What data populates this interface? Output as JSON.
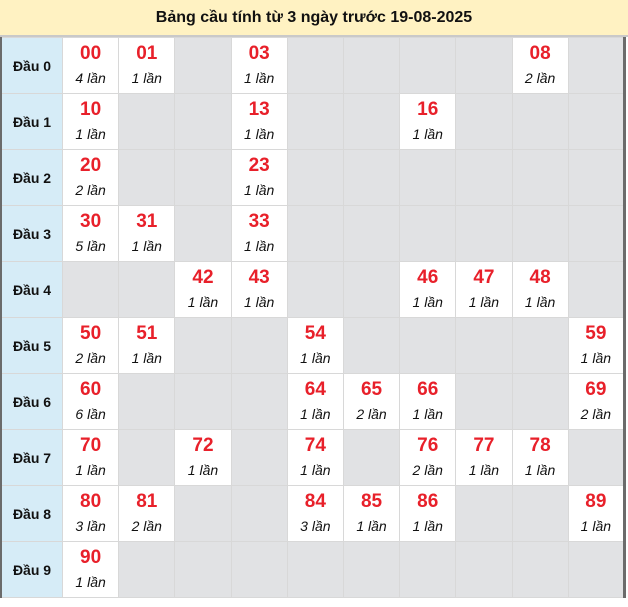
{
  "title": "Bảng cầu tính từ 3 ngày trước 19-08-2025",
  "count_suffix": "lần",
  "colors": {
    "number": "#e8202a",
    "header_bg": "#fff2c2",
    "label_bg": "#d6ecf7",
    "empty_bg": "#e1e2e4"
  },
  "rows": [
    {
      "label": "Đầu 0",
      "cells": [
        {
          "n": "00",
          "c": "4 lần"
        },
        {
          "n": "01",
          "c": "1 lần"
        },
        null,
        {
          "n": "03",
          "c": "1 lần"
        },
        null,
        null,
        null,
        null,
        {
          "n": "08",
          "c": "2 lần"
        },
        null
      ]
    },
    {
      "label": "Đầu 1",
      "cells": [
        {
          "n": "10",
          "c": "1 lần"
        },
        null,
        null,
        {
          "n": "13",
          "c": "1 lần"
        },
        null,
        null,
        {
          "n": "16",
          "c": "1 lần"
        },
        null,
        null,
        null
      ]
    },
    {
      "label": "Đầu 2",
      "cells": [
        {
          "n": "20",
          "c": "2 lần"
        },
        null,
        null,
        {
          "n": "23",
          "c": "1 lần"
        },
        null,
        null,
        null,
        null,
        null,
        null
      ]
    },
    {
      "label": "Đầu 3",
      "cells": [
        {
          "n": "30",
          "c": "5 lần"
        },
        {
          "n": "31",
          "c": "1 lần"
        },
        null,
        {
          "n": "33",
          "c": "1 lần"
        },
        null,
        null,
        null,
        null,
        null,
        null
      ]
    },
    {
      "label": "Đầu 4",
      "cells": [
        null,
        null,
        {
          "n": "42",
          "c": "1 lần"
        },
        {
          "n": "43",
          "c": "1 lần"
        },
        null,
        null,
        {
          "n": "46",
          "c": "1 lần"
        },
        {
          "n": "47",
          "c": "1 lần"
        },
        {
          "n": "48",
          "c": "1 lần"
        },
        null
      ]
    },
    {
      "label": "Đầu 5",
      "cells": [
        {
          "n": "50",
          "c": "2 lần"
        },
        {
          "n": "51",
          "c": "1 lần"
        },
        null,
        null,
        {
          "n": "54",
          "c": "1 lần"
        },
        null,
        null,
        null,
        null,
        {
          "n": "59",
          "c": "1 lần"
        }
      ]
    },
    {
      "label": "Đầu 6",
      "cells": [
        {
          "n": "60",
          "c": "6 lần"
        },
        null,
        null,
        null,
        {
          "n": "64",
          "c": "1 lần"
        },
        {
          "n": "65",
          "c": "2 lần"
        },
        {
          "n": "66",
          "c": "1 lần"
        },
        null,
        null,
        {
          "n": "69",
          "c": "2 lần"
        }
      ]
    },
    {
      "label": "Đầu 7",
      "cells": [
        {
          "n": "70",
          "c": "1 lần"
        },
        null,
        {
          "n": "72",
          "c": "1 lần"
        },
        null,
        {
          "n": "74",
          "c": "1 lần"
        },
        null,
        {
          "n": "76",
          "c": "2 lần"
        },
        {
          "n": "77",
          "c": "1 lần"
        },
        {
          "n": "78",
          "c": "1 lần"
        },
        null
      ]
    },
    {
      "label": "Đầu 8",
      "cells": [
        {
          "n": "80",
          "c": "3 lần"
        },
        {
          "n": "81",
          "c": "2 lần"
        },
        null,
        null,
        {
          "n": "84",
          "c": "3 lần"
        },
        {
          "n": "85",
          "c": "1 lần"
        },
        {
          "n": "86",
          "c": "1 lần"
        },
        null,
        null,
        {
          "n": "89",
          "c": "1 lần"
        }
      ]
    },
    {
      "label": "Đầu 9",
      "cells": [
        {
          "n": "90",
          "c": "1 lần"
        },
        null,
        null,
        null,
        null,
        null,
        null,
        null,
        null,
        null
      ]
    }
  ]
}
